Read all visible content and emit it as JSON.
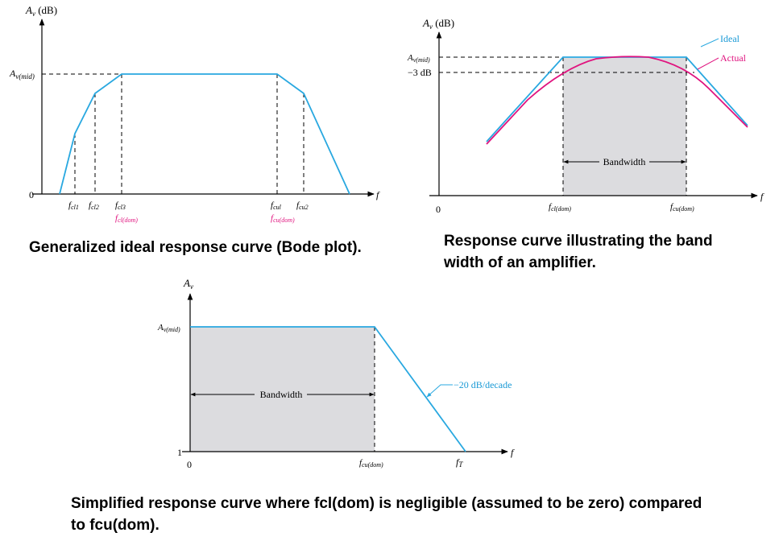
{
  "colors": {
    "ideal": "#29a8e0",
    "actual": "#e0147f",
    "magenta_label": "#e0147f",
    "blue_label": "#1a9ad6",
    "shade": "#dcdcdf",
    "axis": "#000000"
  },
  "diagram1": {
    "y_axis_label": "A",
    "y_axis_sub": "v",
    "y_axis_unit": " (dB)",
    "mid_label": "A",
    "mid_label_sub": "v(mid)",
    "zero_label": "0",
    "x_axis_label": "f",
    "freq_labels": [
      {
        "main": "f",
        "sub": "cl1"
      },
      {
        "main": "f",
        "sub": "cl2"
      },
      {
        "main": "f",
        "sub": "cl3"
      },
      {
        "main": "f",
        "sub": "cul"
      },
      {
        "main": "f",
        "sub": "cu2"
      }
    ],
    "dom_labels": [
      {
        "main": "f",
        "sub": "cl(dom)"
      },
      {
        "main": "f",
        "sub": "cu(dom)"
      }
    ],
    "caption": "Generalized ideal response curve (Bode plot)."
  },
  "diagram2": {
    "y_axis_label": "A",
    "y_axis_sub": "v",
    "y_axis_unit": " (dB)",
    "mid_label": "A",
    "mid_label_sub": "v(mid)",
    "minus3_label": "−3 dB",
    "zero_label": "0",
    "x_axis_label": "f",
    "legend_ideal": "Ideal",
    "legend_actual": "Actual",
    "bandwidth_label": "Bandwidth",
    "freq_labels": [
      {
        "main": "f",
        "sub": "cl(dom)"
      },
      {
        "main": "f",
        "sub": "cu(dom)"
      }
    ],
    "caption_lines": [
      "Response curve illustrating the band",
      "width of an amplifier."
    ]
  },
  "diagram3": {
    "y_axis_label": "A",
    "y_axis_sub": "v",
    "mid_label": "A",
    "mid_label_sub": "v(mid)",
    "one_label": "1",
    "zero_label": "0",
    "x_axis_label": "f",
    "bandwidth_label": "Bandwidth",
    "slope_label": "−20 dB/decade",
    "freq_labels": [
      {
        "main": "f",
        "sub": "cu(dom)"
      },
      {
        "main": "f",
        "sub": "T"
      }
    ],
    "caption_lines": [
      "Simplified response curve where fcl(dom) is negligible (assumed to be zero) compared",
      "to fcu(dom)."
    ]
  }
}
